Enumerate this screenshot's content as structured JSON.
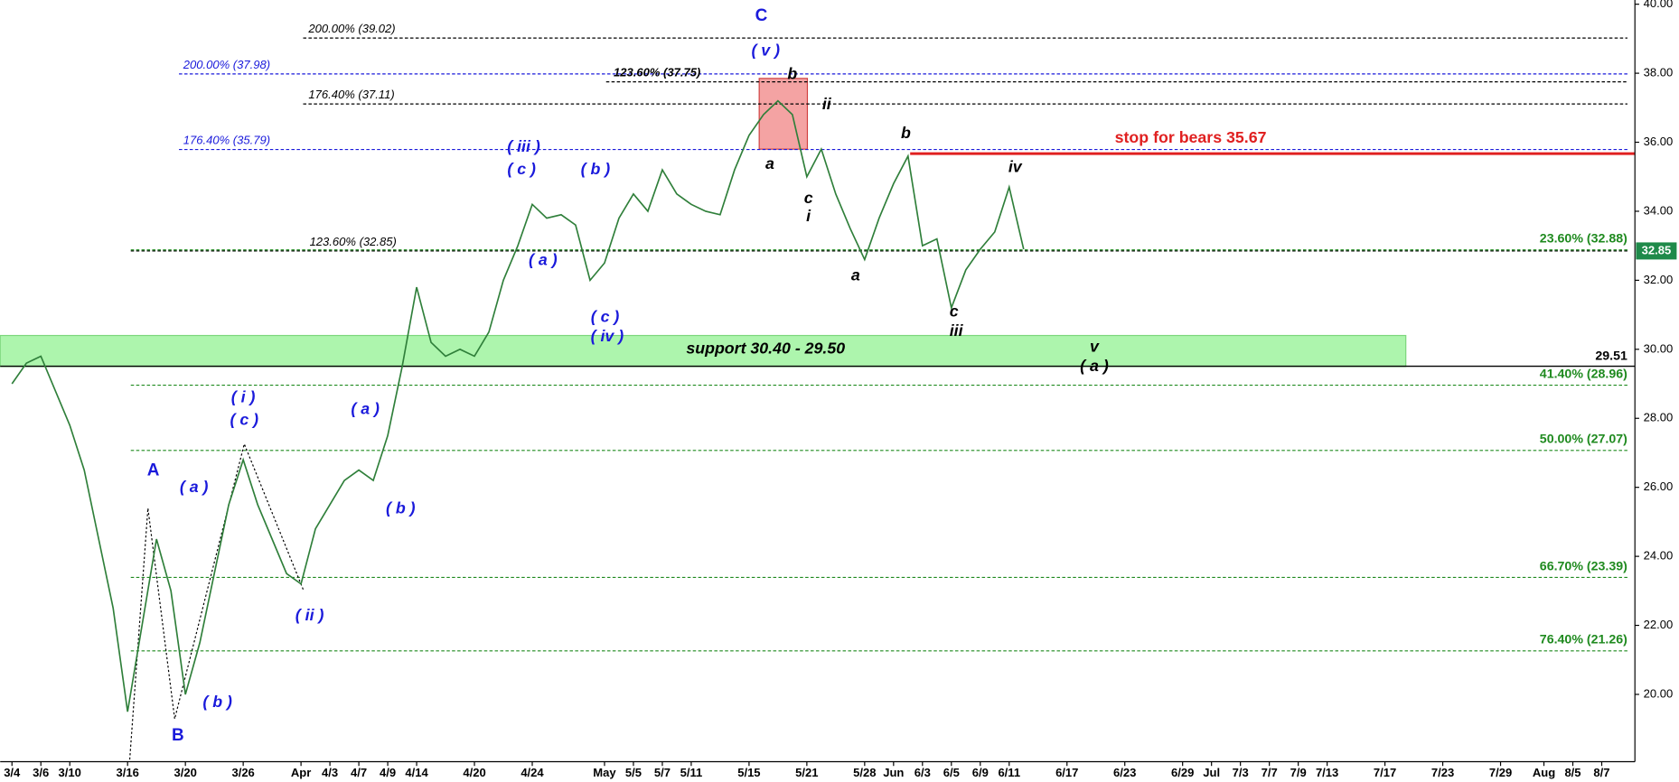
{
  "chart_data": {
    "type": "line",
    "color": "#2f7f3a",
    "categories": [
      "3/4",
      null,
      "3/6",
      null,
      "3/10",
      null,
      null,
      null,
      "3/16",
      null,
      null,
      null,
      "3/20",
      null,
      null,
      null,
      "3/26",
      null,
      null,
      null,
      "Apr",
      null,
      "4/3",
      null,
      "4/7",
      null,
      "4/9",
      null,
      "4/14",
      null,
      null,
      null,
      "4/20",
      null,
      null,
      null,
      "4/24",
      null,
      null,
      null,
      null,
      "May",
      null,
      "5/5",
      null,
      "5/7",
      null,
      "5/11",
      null,
      null,
      null,
      "5/15",
      null,
      null,
      null,
      "5/21",
      null,
      null,
      null,
      "5/28",
      null,
      "Jun",
      null,
      "6/3",
      null,
      "6/5",
      null,
      "6/9",
      null,
      "6/11",
      null,
      null,
      null,
      "6/17",
      null,
      null,
      null,
      "6/23",
      null,
      null,
      null,
      "6/29",
      null,
      "Jul",
      null,
      "7/3",
      null,
      "7/7",
      null,
      "7/9",
      null,
      "7/13",
      null,
      null,
      null,
      "7/17",
      null,
      null,
      null,
      "7/23",
      null,
      null,
      null,
      "7/29",
      null,
      null,
      "Aug",
      null,
      "8/5",
      null,
      "8/7"
    ],
    "values": [
      29.0,
      29.6,
      29.8,
      28.8,
      27.8,
      26.5,
      24.5,
      22.5,
      19.5,
      22.0,
      24.5,
      23.0,
      20.0,
      21.5,
      23.5,
      25.5,
      26.8,
      25.5,
      24.5,
      23.5,
      23.2,
      24.8,
      25.5,
      26.2,
      26.5,
      26.2,
      27.5,
      29.5,
      31.8,
      30.2,
      29.8,
      30.0,
      29.8,
      30.5,
      32.0,
      33.0,
      34.2,
      33.8,
      33.9,
      33.6,
      32.0,
      32.5,
      33.8,
      34.5,
      34.0,
      35.2,
      34.5,
      34.2,
      34.0,
      33.9,
      35.2,
      36.2,
      36.8,
      37.2,
      36.8,
      35.0,
      35.8,
      34.5,
      33.5,
      32.6,
      33.8,
      34.8,
      35.6,
      33.0,
      33.2,
      31.2,
      32.3,
      32.9,
      33.4,
      34.7,
      32.9,
      null,
      null,
      null,
      null,
      null,
      null,
      null,
      null,
      null,
      null,
      null,
      null,
      null,
      null,
      null,
      null,
      null,
      null,
      null,
      null,
      null,
      null,
      null,
      null,
      null,
      null,
      null,
      null,
      null,
      null,
      null,
      null,
      null,
      null,
      null,
      null,
      null,
      null,
      null,
      null
    ],
    "ylim": [
      18.05,
      40.06
    ],
    "yticks": [
      {
        "value": 20,
        "label": "20.00"
      },
      {
        "value": 22,
        "label": "22.00"
      },
      {
        "value": 24,
        "label": "24.00"
      },
      {
        "value": 26,
        "label": "26.00"
      },
      {
        "value": 28,
        "label": "28.00"
      },
      {
        "value": 30,
        "label": "30.00"
      },
      {
        "value": 32,
        "label": "32.00"
      },
      {
        "value": 34,
        "label": "34.00"
      },
      {
        "value": 36,
        "label": "36.00"
      },
      {
        "value": 38,
        "label": "38.00"
      },
      {
        "value": 40,
        "label": "40.00"
      }
    ],
    "levels": [
      {
        "label": "200.00% (39.02)",
        "value": 39.02,
        "color": "#000000",
        "side": "left"
      },
      {
        "label": "200.00% (37.98)",
        "value": 37.98,
        "color": "#1a1adb",
        "side": "left"
      },
      {
        "label": "123.60% (37.75)",
        "value": 37.75,
        "color": "#000000",
        "side": "left"
      },
      {
        "label": "176.40% (37.11)",
        "value": 37.11,
        "color": "#000000",
        "side": "left"
      },
      {
        "label": "176.40% (35.79)",
        "value": 35.79,
        "color": "#1a1adb",
        "side": "left"
      },
      {
        "label": "123.60% (32.85)",
        "value": 32.85,
        "color": "#000000",
        "side": "left"
      },
      {
        "label": "23.60% (32.88)",
        "value": 32.88,
        "color": "#1f8a1f",
        "side": "right"
      },
      {
        "label": "41.40% (28.96)",
        "value": 28.96,
        "color": "#1f8a1f",
        "side": "right"
      },
      {
        "label": "50.00% (27.07)",
        "value": 27.07,
        "color": "#1f8a1f",
        "side": "right"
      },
      {
        "label": "66.70% (23.39)",
        "value": 23.39,
        "color": "#1f8a1f",
        "side": "right"
      },
      {
        "label": "76.40% (21.26)",
        "value": 21.26,
        "color": "#1f8a1f",
        "side": "right"
      }
    ],
    "stop": {
      "label": "stop for bears 35.67",
      "value": 35.67,
      "color": "#e02020"
    },
    "support": {
      "label": "support 30.40 - 29.50",
      "range": [
        29.5,
        30.4
      ],
      "color": "#adf5ad"
    },
    "support_line": 29.51,
    "box": {
      "range": [
        35.8,
        37.85
      ],
      "color": "#f4a3a3"
    },
    "last_price": 32.85,
    "annotations": [
      {
        "text": "C",
        "color": "#1a1adb"
      },
      {
        "text": "( v )",
        "color": "#1a1adb"
      },
      {
        "text": "b",
        "color": "#000000"
      },
      {
        "text": "ii",
        "color": "#000000"
      },
      {
        "text": "a",
        "color": "#000000"
      },
      {
        "text": "c",
        "color": "#000000"
      },
      {
        "text": "i",
        "color": "#000000"
      },
      {
        "text": "b",
        "color": "#000000"
      },
      {
        "text": "iv",
        "color": "#000000"
      },
      {
        "text": "a",
        "color": "#000000"
      },
      {
        "text": "c",
        "color": "#000000"
      },
      {
        "text": "iii",
        "color": "#000000"
      },
      {
        "text": "( iii )",
        "color": "#1a1adb"
      },
      {
        "text": "( c )",
        "color": "#1a1adb"
      },
      {
        "text": "( b )",
        "color": "#1a1adb"
      },
      {
        "text": "( a )",
        "color": "#1a1adb"
      },
      {
        "text": "( c )",
        "color": "#1a1adb"
      },
      {
        "text": "( iv )",
        "color": "#1a1adb"
      },
      {
        "text": "v",
        "color": "#000000"
      },
      {
        "text": "( a )",
        "color": "#000000"
      },
      {
        "text": "( i )",
        "color": "#1a1adb"
      },
      {
        "text": "( c )",
        "color": "#1a1adb"
      },
      {
        "text": "( a )",
        "color": "#1a1adb"
      },
      {
        "text": "A",
        "color": "#1a1adb"
      },
      {
        "text": "( a )",
        "color": "#1a1adb"
      },
      {
        "text": "( b )",
        "color": "#1a1adb"
      },
      {
        "text": "( ii )",
        "color": "#1a1adb"
      },
      {
        "text": "( b )",
        "color": "#1a1adb"
      },
      {
        "text": "B",
        "color": "#1a1adb"
      }
    ]
  }
}
